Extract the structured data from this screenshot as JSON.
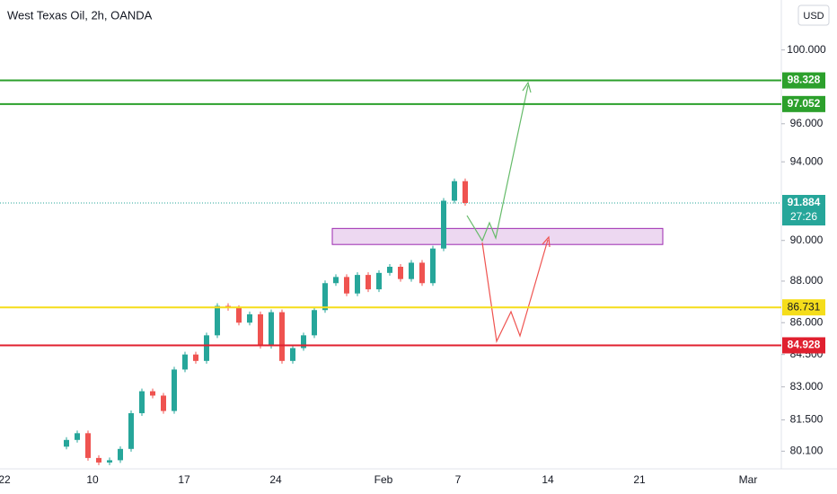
{
  "chart_data": {
    "type": "candlestick",
    "title": "West Texas Oil, 2h, OANDA",
    "currency": "USD",
    "log_scale": true,
    "ylim": [
      79.4,
      102.8
    ],
    "yticks": [
      {
        "value": 80.1,
        "label": "80.100"
      },
      {
        "value": 81.5,
        "label": "81.500"
      },
      {
        "value": 83,
        "label": "83.000"
      },
      {
        "value": 84.5,
        "label": "84.500"
      },
      {
        "value": 86,
        "label": "86.000"
      },
      {
        "value": 88,
        "label": "88.000"
      },
      {
        "value": 90,
        "label": "90.000"
      },
      {
        "value": 94,
        "label": "94.000"
      },
      {
        "value": 96,
        "label": "96.000"
      },
      {
        "value": 100,
        "label": "100.000"
      }
    ],
    "xlabels": [
      "22",
      "10",
      "17",
      "24",
      "Feb",
      "7",
      "14",
      "21",
      "Mar"
    ],
    "first_open": 80.3,
    "closes": [
      80.6,
      80.9,
      79.8,
      79.6,
      79.7,
      80.2,
      81.8,
      82.8,
      82.6,
      81.9,
      83.8,
      84.5,
      84.2,
      85.4,
      86.8,
      86.7,
      86.0,
      86.4,
      84.9,
      86.5,
      84.2,
      84.8,
      85.4,
      86.6,
      87.9,
      88.2,
      87.4,
      88.3,
      87.6,
      88.4,
      88.7,
      88.1,
      88.9,
      87.9,
      89.6,
      92.0,
      93.0,
      91.884
    ],
    "up_color": "#26a69a",
    "down_color": "#ef5350",
    "levels": [
      {
        "value": 98.328,
        "label": "98.328",
        "color": "#2ca02c"
      },
      {
        "value": 97.052,
        "label": "97.052",
        "color": "#2ca02c"
      },
      {
        "value": 86.731,
        "label": "86.731",
        "color": "#f5dd1b"
      },
      {
        "value": 84.928,
        "label": "84.928",
        "color": "#e0202f"
      }
    ],
    "last_price": {
      "value": 91.884,
      "label": "91.884",
      "countdown": "27:26",
      "color": "#26a69a"
    },
    "zone": {
      "low": 89.8,
      "high": 90.6,
      "color": "#9c27b0"
    }
  }
}
